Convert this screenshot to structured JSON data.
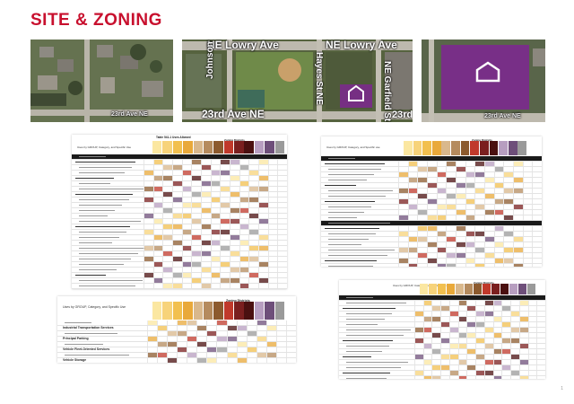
{
  "page": {
    "title": "SITE & ZONING",
    "page_number": "1"
  },
  "aerials": {
    "left": {
      "street": "23rd Ave NE"
    },
    "center": {
      "streets_top": [
        "NE Lowry Ave",
        "NE Lowry Ave"
      ],
      "street_left": "Johnson St NE",
      "street_mid": "Hayes St NE",
      "street_right": "NE Garfield St",
      "street_bottom": "23rd Ave NE",
      "street_bottom_right": "23rd"
    },
    "right": {
      "street": "23rd Ave NE"
    },
    "highlight_color": "#7b2a8c"
  },
  "tables": {
    "t1": {
      "caption": "Table 541-1 Uses Allowed",
      "intro": "Uses by GROUP, Category, and Specific Use",
      "header": "Zoning Districts"
    },
    "t2": {
      "intro": "Uses by GROUP, Category, and Specific use",
      "header": "Zoning Districts"
    },
    "t3": {
      "intro": "Uses by GROUP, Category, and Specific Use",
      "header": "Zoning Districts"
    },
    "t4": {
      "intro": "Uses by GROUP, Category, and Specific use",
      "header": "Zoning Districts"
    },
    "t3_rows": [
      "Industrial Transportation Services",
      "Principal Parking",
      "Vehicle Fleet-Oriented Services",
      "Vehicle Storage"
    ],
    "district_colors": [
      "#fbe7a1",
      "#f7d37a",
      "#f2c04f",
      "#e9a93a",
      "#d9b88c",
      "#b58b5e",
      "#8c5a2e",
      "#c0392b",
      "#7a1f1f",
      "#4a1010",
      "#b79ec0",
      "#6e4f7a",
      "#9a9a9a"
    ]
  }
}
